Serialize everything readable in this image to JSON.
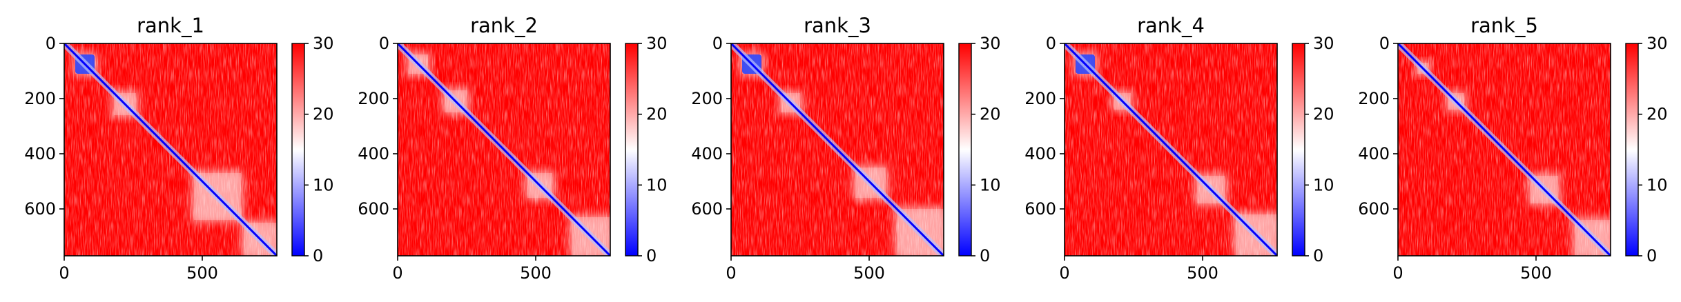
{
  "chart_data": [
    {
      "type": "heatmap",
      "title": "rank_1",
      "xlim": [
        0,
        770
      ],
      "ylim": [
        770,
        0
      ],
      "xticks": [
        0,
        500
      ],
      "yticks": [
        0,
        200,
        400,
        600
      ],
      "xtick_labels": [
        "0",
        "500"
      ],
      "ytick_labels": [
        "0",
        "200",
        "400",
        "600"
      ],
      "colorbar": {
        "range": [
          0,
          30
        ],
        "ticks": [
          0,
          10,
          20,
          30
        ],
        "labels": [
          "0",
          "10",
          "20",
          "30"
        ],
        "colormap": "bwr"
      },
      "domains": [
        [
          40,
          110
        ],
        [
          180,
          260
        ],
        [
          470,
          640
        ],
        [
          650,
          770
        ]
      ],
      "dense_blocks": [
        [
          40,
          110
        ]
      ]
    },
    {
      "type": "heatmap",
      "title": "rank_2",
      "xlim": [
        0,
        770
      ],
      "ylim": [
        770,
        0
      ],
      "xticks": [
        0,
        500
      ],
      "yticks": [
        0,
        200,
        400,
        600
      ],
      "xtick_labels": [
        "0",
        "500"
      ],
      "ytick_labels": [
        "0",
        "200",
        "400",
        "600"
      ],
      "colorbar": {
        "range": [
          0,
          30
        ],
        "ticks": [
          0,
          10,
          20,
          30
        ],
        "labels": [
          "0",
          "10",
          "20",
          "30"
        ],
        "colormap": "bwr"
      },
      "domains": [
        [
          40,
          110
        ],
        [
          170,
          250
        ],
        [
          470,
          560
        ],
        [
          630,
          770
        ]
      ],
      "dense_blocks": []
    },
    {
      "type": "heatmap",
      "title": "rank_3",
      "xlim": [
        0,
        770
      ],
      "ylim": [
        770,
        0
      ],
      "xticks": [
        0,
        500
      ],
      "yticks": [
        0,
        200,
        400,
        600
      ],
      "xtick_labels": [
        "0",
        "500"
      ],
      "ytick_labels": [
        "0",
        "200",
        "400",
        "600"
      ],
      "colorbar": {
        "range": [
          0,
          30
        ],
        "ticks": [
          0,
          10,
          20,
          30
        ],
        "labels": [
          "0",
          "10",
          "20",
          "30"
        ],
        "colormap": "bwr"
      },
      "domains": [
        [
          40,
          110
        ],
        [
          180,
          250
        ],
        [
          450,
          560
        ],
        [
          600,
          770
        ]
      ],
      "dense_blocks": [
        [
          40,
          110
        ]
      ]
    },
    {
      "type": "heatmap",
      "title": "rank_4",
      "xlim": [
        0,
        770
      ],
      "ylim": [
        770,
        0
      ],
      "xticks": [
        0,
        500
      ],
      "yticks": [
        0,
        200,
        400,
        600
      ],
      "xtick_labels": [
        "0",
        "500"
      ],
      "ytick_labels": [
        "0",
        "200",
        "400",
        "600"
      ],
      "colorbar": {
        "range": [
          0,
          30
        ],
        "ticks": [
          0,
          10,
          20,
          30
        ],
        "labels": [
          "0",
          "10",
          "20",
          "30"
        ],
        "colormap": "bwr"
      },
      "domains": [
        [
          40,
          110
        ],
        [
          180,
          240
        ],
        [
          480,
          580
        ],
        [
          620,
          770
        ]
      ],
      "dense_blocks": [
        [
          40,
          110
        ]
      ]
    },
    {
      "type": "heatmap",
      "title": "rank_5",
      "xlim": [
        0,
        770
      ],
      "ylim": [
        770,
        0
      ],
      "xticks": [
        0,
        500
      ],
      "yticks": [
        0,
        200,
        400,
        600
      ],
      "xtick_labels": [
        "0",
        "500"
      ],
      "ytick_labels": [
        "0",
        "200",
        "400",
        "600"
      ],
      "colorbar": {
        "range": [
          0,
          30
        ],
        "ticks": [
          0,
          10,
          20,
          30
        ],
        "labels": [
          "0",
          "10",
          "20",
          "30"
        ],
        "colormap": "bwr"
      },
      "domains": [
        [
          70,
          110
        ],
        [
          180,
          240
        ],
        [
          480,
          580
        ],
        [
          640,
          770
        ]
      ],
      "dense_blocks": []
    }
  ]
}
